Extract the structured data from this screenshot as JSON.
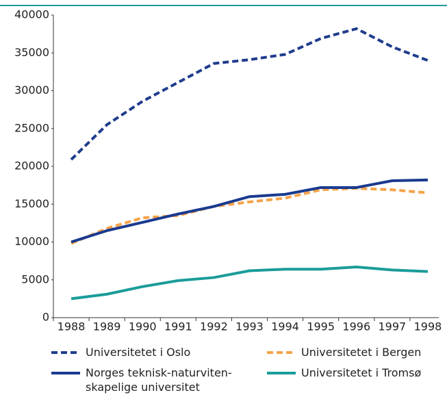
{
  "chart_data": {
    "type": "line",
    "categories": [
      "1988",
      "1989",
      "1990",
      "1991",
      "1992",
      "1993",
      "1994",
      "1995",
      "1996",
      "1997",
      "1998"
    ],
    "series": [
      {
        "name": "Universitetet i Oslo",
        "color": "#1f3c8c",
        "dash": true,
        "values": [
          20900,
          25500,
          28600,
          31100,
          33600,
          34100,
          34800,
          36900,
          38200,
          35800,
          34000
        ]
      },
      {
        "name": "Universitetet i Bergen",
        "color": "#f5a34a",
        "dash": true,
        "values": [
          9800,
          11800,
          13200,
          13500,
          14700,
          15300,
          15800,
          16900,
          17100,
          16900,
          16500
        ]
      },
      {
        "name": "Norges teknisk-naturviten-\nskapelige universitet",
        "color": "#1a3a8f",
        "dash": false,
        "values": [
          10000,
          11500,
          12600,
          13700,
          14700,
          16000,
          16300,
          17200,
          17200,
          18100,
          18200
        ]
      },
      {
        "name": "Universitetet i Tromsø",
        "color": "#1a9c9a",
        "dash": false,
        "values": [
          2500,
          3100,
          4100,
          4900,
          5300,
          6200,
          6400,
          6400,
          6700,
          6300,
          6100
        ]
      }
    ],
    "ylim": [
      0,
      40000
    ],
    "yticks": [
      0,
      5000,
      10000,
      15000,
      20000,
      25000,
      30000,
      35000,
      40000
    ]
  }
}
